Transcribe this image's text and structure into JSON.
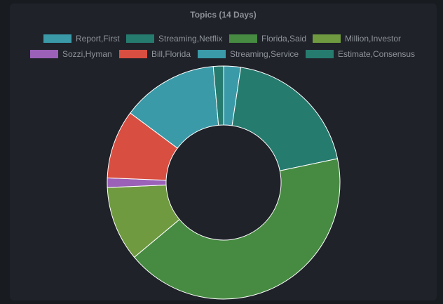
{
  "chart_data": {
    "type": "pie",
    "title": "Topics (14 Days)",
    "legend_position": "top",
    "labels": [
      "Report,First",
      "Streaming,Netflix",
      "Florida,Said",
      "Million,Investor",
      "Sozzi,Hyman",
      "Bill,Florida",
      "Streaming,Service",
      "Estimate,Consensus"
    ],
    "values": [
      2.5,
      20.5,
      44.7,
      11.0,
      1.4,
      10.1,
      14.2,
      1.5
    ],
    "colors": [
      "#3a9aa8",
      "#267b6f",
      "#468b41",
      "#6f9a40",
      "#9b61b8",
      "#d84e41",
      "#3a9aa8",
      "#267b6f"
    ],
    "donut": true
  }
}
